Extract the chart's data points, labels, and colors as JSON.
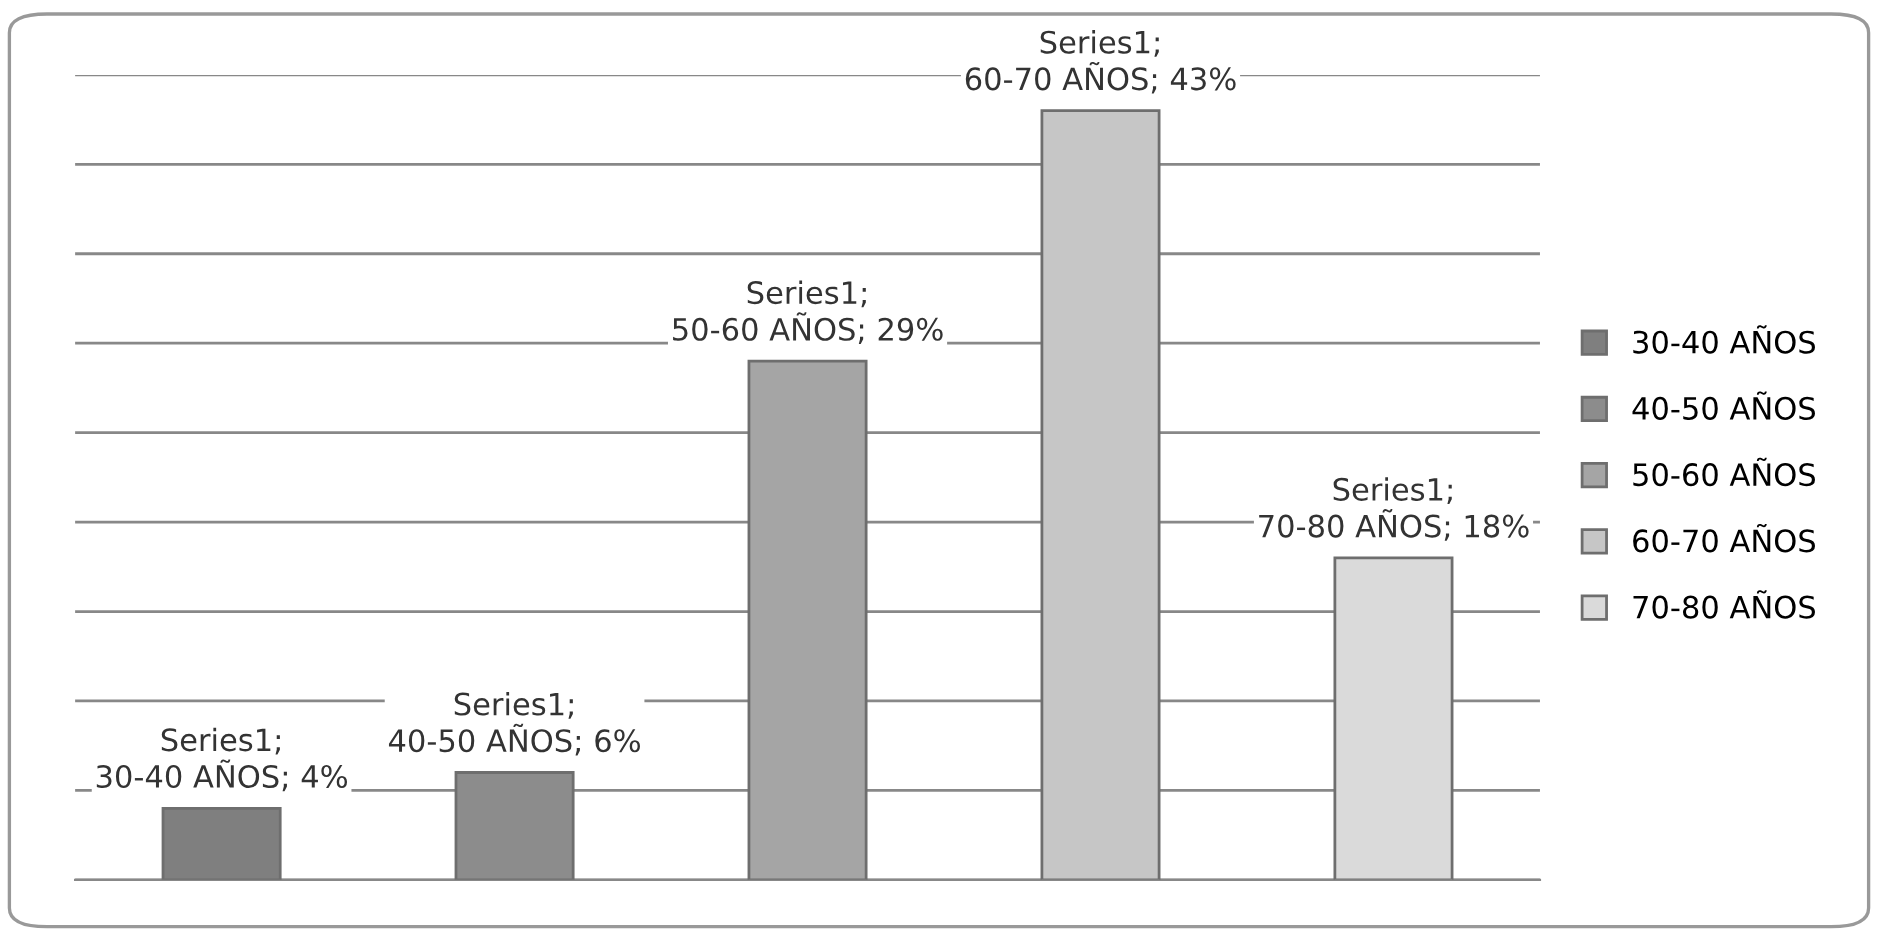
{
  "chart_data": {
    "type": "bar",
    "stacked": true,
    "categories": [
      null,
      null,
      null,
      null,
      null
    ],
    "series": [
      {
        "name": "30-40 AÑOS",
        "color": "#7f7f7f",
        "values": [
          4,
          null,
          null,
          null,
          null
        ],
        "value_labels": [
          "Series1; 30-40 AÑOS; 4%",
          null,
          null,
          null,
          null
        ]
      },
      {
        "name": "40-50 AÑOS",
        "color": "#8c8c8c",
        "values": [
          null,
          6,
          null,
          null,
          null
        ],
        "value_labels": [
          null,
          "Series1; 40-50 AÑOS; 6%",
          null,
          null,
          null
        ]
      },
      {
        "name": "50-60 AÑOS",
        "color": "#a5a5a5",
        "values": [
          null,
          null,
          29,
          null,
          null
        ],
        "value_labels": [
          null,
          null,
          "Series1; 50-60 AÑOS; 29%",
          null,
          null
        ]
      },
      {
        "name": "60-70 AÑOS",
        "color": "#c6c6c6",
        "values": [
          null,
          null,
          null,
          43,
          null
        ],
        "value_labels": [
          null,
          null,
          null,
          "Series1; 60-70 AÑOS; 43%",
          null
        ]
      },
      {
        "name": "70-80 AÑOS",
        "color": "#dadada",
        "values": [
          null,
          null,
          null,
          null,
          18
        ],
        "value_labels": [
          null,
          null,
          null,
          null,
          "Series1; 70-80 AÑOS; 18%"
        ]
      }
    ],
    "ylim": [
      0,
      45
    ],
    "yticks": [
      {
        "value": 0,
        "label": null
      },
      {
        "value": 5,
        "label": null
      },
      {
        "value": 10,
        "label": null
      },
      {
        "value": 15,
        "label": null
      },
      {
        "value": 20,
        "label": null
      },
      {
        "value": 25,
        "label": null
      },
      {
        "value": 30,
        "label": null
      },
      {
        "value": 35,
        "label": null
      },
      {
        "value": 40,
        "label": null
      },
      {
        "value": 45,
        "label": null
      }
    ],
    "grid": "y",
    "legend": "right"
  }
}
